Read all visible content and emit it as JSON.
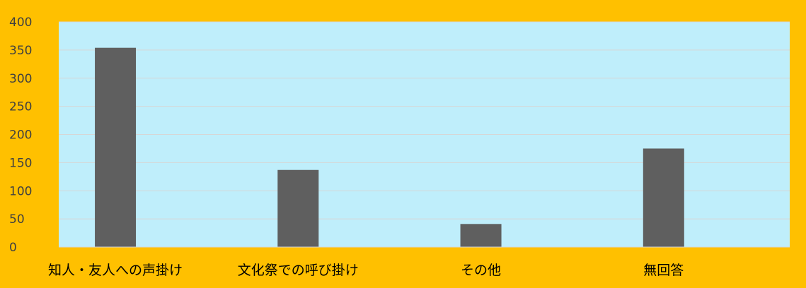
{
  "colors": {
    "outer_background": "#FFC000",
    "plot_background": "#BFEEFB",
    "bar": "#5F5F5F",
    "gridline": "#D6D6D6",
    "text": "#000000",
    "tick_text": "#404040"
  },
  "chart_data": {
    "type": "bar",
    "title": "",
    "xlabel": "",
    "ylabel": "",
    "categories": [
      "知人・友人への声掛け",
      "文化祭での呼び掛け",
      "その他",
      "無回答"
    ],
    "values": [
      354,
      137,
      41,
      175
    ],
    "ylim": [
      0,
      400
    ],
    "yticks": [
      0,
      50,
      100,
      150,
      200,
      250,
      300,
      350,
      400
    ],
    "grid": true,
    "legend": "none"
  }
}
